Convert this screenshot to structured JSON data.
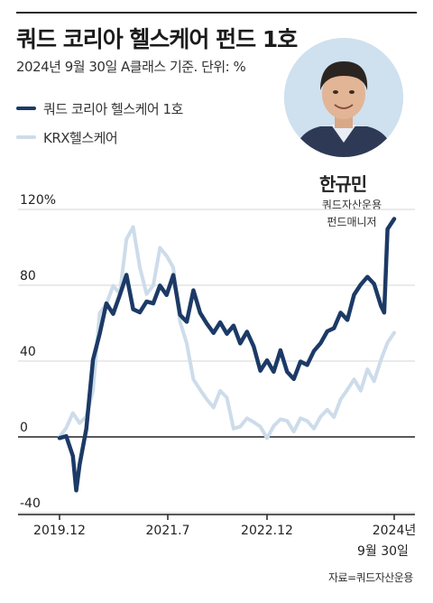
{
  "header": {
    "title": "쿼드 코리아 헬스케어 펀드 1호",
    "subtitle": "2024년 9월 30일 A클래스 기준. 단위: %"
  },
  "legend": [
    {
      "label": "쿼드 코리아 헬스케어 1호",
      "color": "#1c3a66"
    },
    {
      "label": "KRX헬스케어",
      "color": "#cddcea"
    }
  ],
  "person": {
    "name": "한규민",
    "company": "쿼드자산운용",
    "role": "펀드매니저"
  },
  "note": {
    "date": "9월 30일",
    "source": "자료=쿼드자산운용"
  },
  "chart_data": {
    "type": "line",
    "ylim": [
      -40,
      130
    ],
    "yticks": [
      {
        "value": -40,
        "label": "-40"
      },
      {
        "value": 0,
        "label": "0"
      },
      {
        "value": 40,
        "label": "40"
      },
      {
        "value": 80,
        "label": "80"
      },
      {
        "value": 120,
        "label": "120%"
      }
    ],
    "xticks": [
      "2019.12",
      "2021.7",
      "2022.12",
      "2024년"
    ],
    "grid": true,
    "series": [
      {
        "name": "KRX헬스케어",
        "color": "#cddcea",
        "x": [
          0.0,
          0.02,
          0.04,
          0.06,
          0.08,
          0.1,
          0.12,
          0.14,
          0.16,
          0.18,
          0.2,
          0.22,
          0.24,
          0.26,
          0.28,
          0.3,
          0.32,
          0.34,
          0.36,
          0.38,
          0.4,
          0.42,
          0.44,
          0.46,
          0.48,
          0.5,
          0.52,
          0.54,
          0.56,
          0.58,
          0.6,
          0.62,
          0.64,
          0.66,
          0.68,
          0.7,
          0.72,
          0.74,
          0.76,
          0.78,
          0.8,
          0.82,
          0.84,
          0.86,
          0.88,
          0.9,
          0.92,
          0.94,
          0.96,
          0.98,
          1.0
        ],
        "values": [
          0,
          5,
          12,
          8,
          10,
          25,
          65,
          70,
          80,
          75,
          105,
          110,
          90,
          75,
          80,
          100,
          95,
          90,
          60,
          50,
          30,
          25,
          20,
          15,
          25,
          20,
          5,
          5,
          10,
          8,
          5,
          0,
          5,
          10,
          8,
          3,
          10,
          8,
          5,
          10,
          15,
          10,
          20,
          25,
          30,
          25,
          35,
          30,
          40,
          50,
          55
        ]
      },
      {
        "name": "쿼드 코리아 헬스케어 1호",
        "color": "#1c3a66",
        "x": [
          0.0,
          0.02,
          0.04,
          0.05,
          0.06,
          0.08,
          0.1,
          0.12,
          0.14,
          0.16,
          0.18,
          0.2,
          0.22,
          0.24,
          0.26,
          0.28,
          0.3,
          0.32,
          0.34,
          0.36,
          0.38,
          0.4,
          0.42,
          0.44,
          0.46,
          0.48,
          0.5,
          0.52,
          0.54,
          0.56,
          0.58,
          0.6,
          0.62,
          0.64,
          0.66,
          0.68,
          0.7,
          0.72,
          0.74,
          0.76,
          0.78,
          0.8,
          0.82,
          0.84,
          0.86,
          0.88,
          0.9,
          0.92,
          0.94,
          0.96,
          0.97,
          0.98,
          1.0
        ],
        "values": [
          0,
          0,
          -10,
          -28,
          -15,
          5,
          40,
          55,
          70,
          65,
          75,
          85,
          68,
          65,
          72,
          70,
          80,
          75,
          85,
          65,
          60,
          78,
          65,
          60,
          55,
          60,
          55,
          58,
          50,
          55,
          48,
          35,
          40,
          35,
          45,
          35,
          30,
          40,
          38,
          45,
          50,
          55,
          58,
          65,
          62,
          75,
          80,
          85,
          80,
          70,
          65,
          110,
          115
        ]
      }
    ]
  }
}
